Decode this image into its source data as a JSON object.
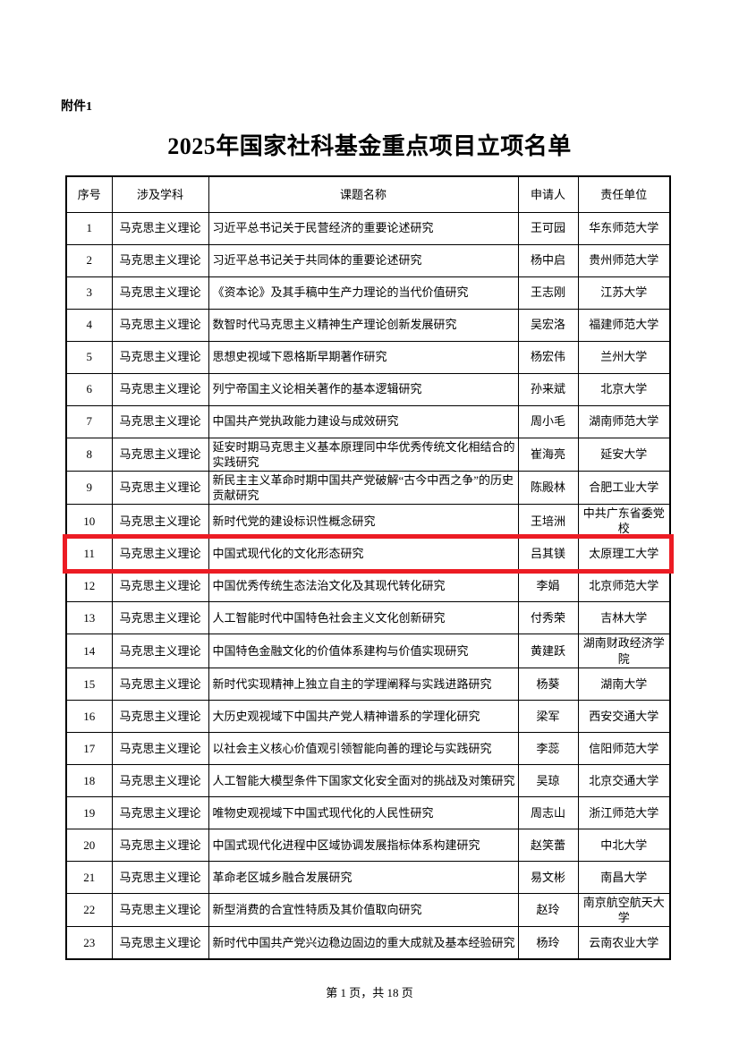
{
  "page": {
    "attachment_label": "附件1",
    "title": "2025年国家社科基金重点项目立项名单",
    "footer": "第 1 页，共 18 页"
  },
  "table": {
    "highlight_color": "#ec1c24",
    "columns": [
      {
        "key": "no",
        "label": "序号"
      },
      {
        "key": "discipline",
        "label": "涉及学科"
      },
      {
        "key": "title",
        "label": "课题名称"
      },
      {
        "key": "applicant",
        "label": "申请人"
      },
      {
        "key": "unit",
        "label": "责任单位"
      }
    ],
    "rows": [
      {
        "no": "1",
        "discipline": "马克思主义理论",
        "title": "习近平总书记关于民营经济的重要论述研究",
        "applicant": "王可园",
        "unit": "华东师范大学",
        "highlighted": false
      },
      {
        "no": "2",
        "discipline": "马克思主义理论",
        "title": "习近平总书记关于共同体的重要论述研究",
        "applicant": "杨中启",
        "unit": "贵州师范大学",
        "highlighted": false
      },
      {
        "no": "3",
        "discipline": "马克思主义理论",
        "title": "《资本论》及其手稿中生产力理论的当代价值研究",
        "applicant": "王志刚",
        "unit": "江苏大学",
        "highlighted": false
      },
      {
        "no": "4",
        "discipline": "马克思主义理论",
        "title": "数智时代马克思主义精神生产理论创新发展研究",
        "applicant": "吴宏洛",
        "unit": "福建师范大学",
        "highlighted": false
      },
      {
        "no": "5",
        "discipline": "马克思主义理论",
        "title": "思想史视域下恩格斯早期著作研究",
        "applicant": "杨宏伟",
        "unit": "兰州大学",
        "highlighted": false
      },
      {
        "no": "6",
        "discipline": "马克思主义理论",
        "title": "列宁帝国主义论相关著作的基本逻辑研究",
        "applicant": "孙来斌",
        "unit": "北京大学",
        "highlighted": false
      },
      {
        "no": "7",
        "discipline": "马克思主义理论",
        "title": "中国共产党执政能力建设与成效研究",
        "applicant": "周小毛",
        "unit": "湖南师范大学",
        "highlighted": false
      },
      {
        "no": "8",
        "discipline": "马克思主义理论",
        "title": "延安时期马克思主义基本原理同中华优秀传统文化相结合的实践研究",
        "applicant": "崔海亮",
        "unit": "延安大学",
        "highlighted": false
      },
      {
        "no": "9",
        "discipline": "马克思主义理论",
        "title": "新民主主义革命时期中国共产党破解“古今中西之争”的历史贡献研究",
        "applicant": "陈殿林",
        "unit": "合肥工业大学",
        "highlighted": false
      },
      {
        "no": "10",
        "discipline": "马克思主义理论",
        "title": "新时代党的建设标识性概念研究",
        "applicant": "王培洲",
        "unit": "中共广东省委党校",
        "highlighted": false
      },
      {
        "no": "11",
        "discipline": "马克思主义理论",
        "title": "中国式现代化的文化形态研究",
        "applicant": "吕其镁",
        "unit": "太原理工大学",
        "highlighted": true
      },
      {
        "no": "12",
        "discipline": "马克思主义理论",
        "title": "中国优秀传统生态法治文化及其现代转化研究",
        "applicant": "李娟",
        "unit": "北京师范大学",
        "highlighted": false
      },
      {
        "no": "13",
        "discipline": "马克思主义理论",
        "title": "人工智能时代中国特色社会主义文化创新研究",
        "applicant": "付秀荣",
        "unit": "吉林大学",
        "highlighted": false
      },
      {
        "no": "14",
        "discipline": "马克思主义理论",
        "title": "中国特色金融文化的价值体系建构与价值实现研究",
        "applicant": "黄建跃",
        "unit": "湖南财政经济学院",
        "highlighted": false
      },
      {
        "no": "15",
        "discipline": "马克思主义理论",
        "title": "新时代实现精神上独立自主的学理阐释与实践进路研究",
        "applicant": "杨葵",
        "unit": "湖南大学",
        "highlighted": false
      },
      {
        "no": "16",
        "discipline": "马克思主义理论",
        "title": "大历史观视域下中国共产党人精神谱系的学理化研究",
        "applicant": "梁军",
        "unit": "西安交通大学",
        "highlighted": false
      },
      {
        "no": "17",
        "discipline": "马克思主义理论",
        "title": "以社会主义核心价值观引领智能向善的理论与实践研究",
        "applicant": "李蕊",
        "unit": "信阳师范大学",
        "highlighted": false
      },
      {
        "no": "18",
        "discipline": "马克思主义理论",
        "title": "人工智能大模型条件下国家文化安全面对的挑战及对策研究",
        "applicant": "吴琼",
        "unit": "北京交通大学",
        "highlighted": false
      },
      {
        "no": "19",
        "discipline": "马克思主义理论",
        "title": "唯物史观视域下中国式现代化的人民性研究",
        "applicant": "周志山",
        "unit": "浙江师范大学",
        "highlighted": false
      },
      {
        "no": "20",
        "discipline": "马克思主义理论",
        "title": "中国式现代化进程中区域协调发展指标体系构建研究",
        "applicant": "赵笑蕾",
        "unit": "中北大学",
        "highlighted": false
      },
      {
        "no": "21",
        "discipline": "马克思主义理论",
        "title": "革命老区城乡融合发展研究",
        "applicant": "易文彬",
        "unit": "南昌大学",
        "highlighted": false
      },
      {
        "no": "22",
        "discipline": "马克思主义理论",
        "title": "新型消费的合宜性特质及其价值取向研究",
        "applicant": "赵玲",
        "unit": "南京航空航天大学",
        "highlighted": false
      },
      {
        "no": "23",
        "discipline": "马克思主义理论",
        "title": "新时代中国共产党兴边稳边固边的重大成就及基本经验研究",
        "applicant": "杨玲",
        "unit": "云南农业大学",
        "highlighted": false
      }
    ]
  }
}
